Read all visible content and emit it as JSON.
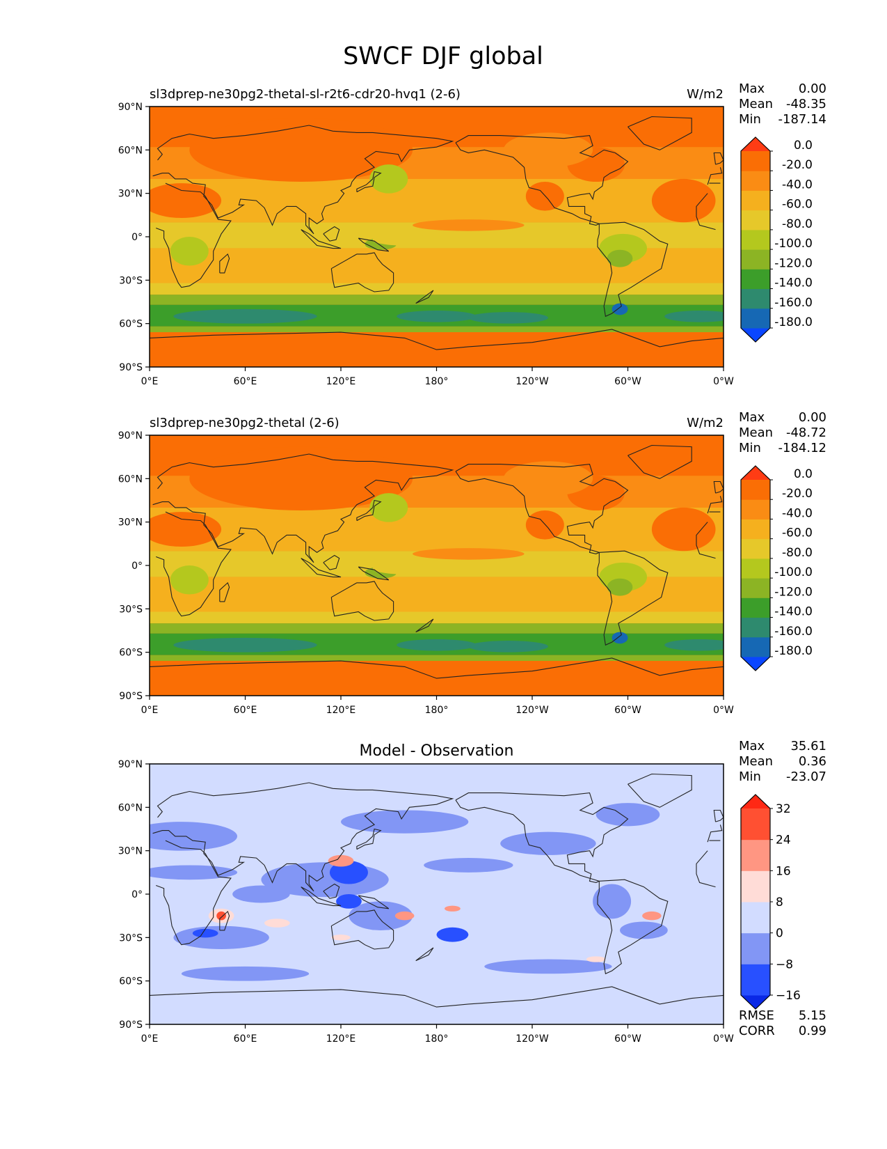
{
  "title": "SWCF DJF global",
  "axes": {
    "lat_labels": [
      "90°N",
      "60°N",
      "30°N",
      "0°",
      "30°S",
      "60°S",
      "90°S"
    ],
    "lon_labels": [
      "0°E",
      "60°E",
      "120°E",
      "180°",
      "120°W",
      "60°W",
      "0°W"
    ]
  },
  "panels": [
    {
      "title_left": "sl3dprep-ne30pg2-thetal-sl-r2t6-cdr20-hvq1 (2-6)",
      "title_center": "",
      "units": "W/m2",
      "stats": [
        {
          "label": "Max",
          "value": "0.00"
        },
        {
          "label": "Mean",
          "value": "-48.35"
        },
        {
          "label": "Min",
          "value": "-187.14"
        }
      ],
      "colorbar": {
        "colors": [
          "#0a46ff",
          "#1668b4",
          "#2e8a6e",
          "#3c9e2a",
          "#8cb424",
          "#b4c81e",
          "#e6c82a",
          "#f5b01e",
          "#fa8c14",
          "#fa6e05",
          "#ff3c14"
        ],
        "tick_labels": [
          "-180.0",
          "-160.0",
          "-140.0",
          "-120.0",
          "-100.0",
          "-80.0",
          "-60.0",
          "-40.0",
          "-20.0",
          "0.0"
        ]
      },
      "footer": []
    },
    {
      "title_left": "sl3dprep-ne30pg2-thetal (2-6)",
      "title_center": "",
      "units": "W/m2",
      "stats": [
        {
          "label": "Max",
          "value": "0.00"
        },
        {
          "label": "Mean",
          "value": "-48.72"
        },
        {
          "label": "Min",
          "value": "-184.12"
        }
      ],
      "colorbar": {
        "colors": [
          "#0a46ff",
          "#1668b4",
          "#2e8a6e",
          "#3c9e2a",
          "#8cb424",
          "#b4c81e",
          "#e6c82a",
          "#f5b01e",
          "#fa8c14",
          "#fa6e05",
          "#ff3c14"
        ],
        "tick_labels": [
          "-180.0",
          "-160.0",
          "-140.0",
          "-120.0",
          "-100.0",
          "-80.0",
          "-60.0",
          "-40.0",
          "-20.0",
          "0.0"
        ]
      },
      "footer": []
    },
    {
      "title_left": "",
      "title_center": "Model - Observation",
      "units": "",
      "stats": [
        {
          "label": "Max",
          "value": "35.61"
        },
        {
          "label": "Mean",
          "value": "0.36"
        },
        {
          "label": "Min",
          "value": "-23.07"
        }
      ],
      "colorbar": {
        "colors": [
          "#0a28e6",
          "#2850ff",
          "#8296f5",
          "#d2dcff",
          "#ffdcd7",
          "#ff9682",
          "#ff5032",
          "#ff2814"
        ],
        "tick_labels": [
          "−16",
          "−8",
          "0",
          "8",
          "16",
          "24",
          "32"
        ]
      },
      "footer": [
        {
          "label": "RMSE",
          "value": "5.15"
        },
        {
          "label": "CORR",
          "value": "0.99"
        }
      ]
    }
  ],
  "chart_data": [
    {
      "type": "heatmap",
      "title": "sl3dprep-ne30pg2-thetal-sl-r2t6-cdr20-hvq1 (2-6)",
      "units": "W/m2",
      "x_range": [
        0,
        360
      ],
      "y_range": [
        -90,
        90
      ],
      "levels": [
        -180,
        -160,
        -140,
        -120,
        -100,
        -80,
        -60,
        -40,
        -20,
        0
      ],
      "statistics": {
        "max": 0.0,
        "mean": -48.35,
        "min": -187.14
      }
    },
    {
      "type": "heatmap",
      "title": "sl3dprep-ne30pg2-thetal (2-6)",
      "units": "W/m2",
      "x_range": [
        0,
        360
      ],
      "y_range": [
        -90,
        90
      ],
      "levels": [
        -180,
        -160,
        -140,
        -120,
        -100,
        -80,
        -60,
        -40,
        -20,
        0
      ],
      "statistics": {
        "max": 0.0,
        "mean": -48.72,
        "min": -184.12
      }
    },
    {
      "type": "heatmap",
      "title": "Model - Observation",
      "x_range": [
        0,
        360
      ],
      "y_range": [
        -90,
        90
      ],
      "levels": [
        -16,
        -8,
        0,
        8,
        16,
        24,
        32
      ],
      "statistics": {
        "max": 35.61,
        "mean": 0.36,
        "min": -23.07,
        "rmse": 5.15,
        "corr": 0.99
      }
    }
  ]
}
